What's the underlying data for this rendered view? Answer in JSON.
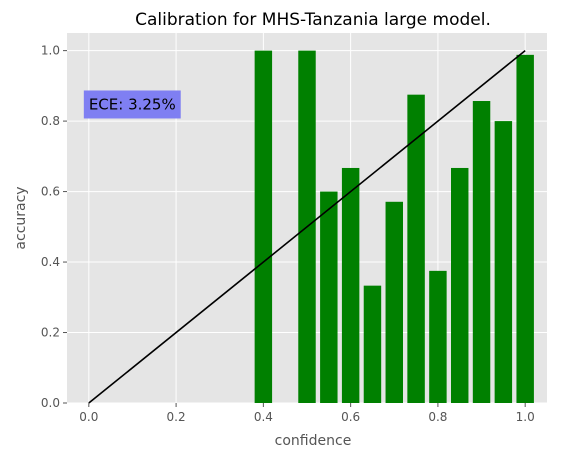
{
  "chart_data": {
    "type": "bar",
    "title": "Calibration for MHS-Tanzania large model.",
    "xlabel": "confidence",
    "ylabel": "accuracy",
    "xlim": [
      -0.05,
      1.05
    ],
    "ylim": [
      0,
      1.05
    ],
    "xticks": [
      0.0,
      0.2,
      0.4,
      0.6,
      0.8,
      1.0
    ],
    "yticks": [
      0.0,
      0.2,
      0.4,
      0.6,
      0.8,
      1.0
    ],
    "tick_labels_x": [
      "0.0",
      "0.2",
      "0.4",
      "0.6",
      "0.8",
      "1.0"
    ],
    "tick_labels_y": [
      "0.0",
      "0.2",
      "0.4",
      "0.6",
      "0.8",
      "1.0"
    ],
    "bar_width": 0.04,
    "bars": [
      {
        "x": 0.4,
        "y": 1.0
      },
      {
        "x": 0.5,
        "y": 1.0
      },
      {
        "x": 0.55,
        "y": 0.6
      },
      {
        "x": 0.6,
        "y": 0.667
      },
      {
        "x": 0.65,
        "y": 0.333
      },
      {
        "x": 0.7,
        "y": 0.571
      },
      {
        "x": 0.75,
        "y": 0.875
      },
      {
        "x": 0.8,
        "y": 0.375
      },
      {
        "x": 0.85,
        "y": 0.667
      },
      {
        "x": 0.9,
        "y": 0.857
      },
      {
        "x": 0.95,
        "y": 0.8
      },
      {
        "x": 1.0,
        "y": 0.988
      }
    ],
    "diagonal": {
      "from": [
        0.0,
        0.0
      ],
      "to": [
        1.0,
        1.0
      ],
      "color": "#000000"
    },
    "annotation": {
      "text": "ECE: 3.25%",
      "x": 0.0,
      "y": 0.85,
      "box_color": "#7f7ff2"
    },
    "grid": true,
    "bar_color": "#008000",
    "background_color": "#e5e5e5",
    "grid_color": "#ffffff"
  }
}
